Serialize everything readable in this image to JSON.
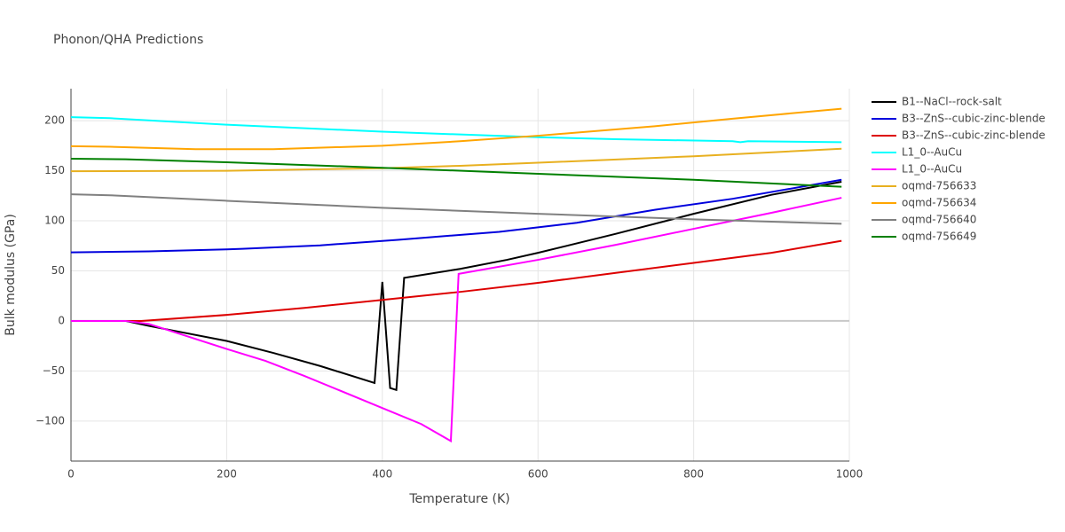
{
  "chart_data": {
    "type": "line",
    "title": "Phonon/QHA Predictions",
    "x_label": "Temperature (K)",
    "y_label": "Bulk modulus (GPa)",
    "xlim": [
      0,
      1000
    ],
    "ylim": [
      -140,
      232
    ],
    "xticks": [
      0,
      200,
      400,
      600,
      800,
      1000
    ],
    "yticks": [
      {
        "value": -100,
        "label": "−100"
      },
      {
        "value": -50,
        "label": "−50"
      },
      0,
      50,
      100,
      150,
      200
    ],
    "grid": true,
    "legend": "right",
    "series": [
      {
        "name": "B1--NaCl--rock-salt",
        "color": "#000000",
        "x": [
          0,
          70,
          100,
          200,
          260,
          320,
          390,
          400,
          410,
          418,
          428,
          500,
          560,
          600,
          700,
          800,
          900,
          990
        ],
        "values": [
          0,
          0,
          -5,
          -20,
          -32,
          -45,
          -62,
          39,
          -67,
          -69,
          43,
          52,
          61,
          68,
          87,
          107,
          126,
          139
        ]
      },
      {
        "name": "B3--ZnS--cubic-zinc-blende",
        "color": "#0000dd",
        "x": [
          0,
          100,
          200,
          220,
          320,
          420,
          550,
          650,
          750,
          850,
          990
        ],
        "values": [
          68.5,
          69.5,
          71.5,
          72,
          75.5,
          81,
          89,
          98,
          111,
          122,
          141
        ]
      },
      {
        "name": "B3--ZnS--cubic-zinc-blende",
        "color": "#dd0000",
        "x": [
          0,
          90,
          200,
          300,
          400,
          500,
          600,
          700,
          800,
          900,
          990
        ],
        "values": [
          0,
          0,
          6,
          13,
          21,
          29,
          38,
          48,
          58,
          68,
          80
        ]
      },
      {
        "name": "L1_0--AuCu",
        "color": "#00ffff",
        "x": [
          0,
          50,
          200,
          400,
          600,
          700,
          850,
          860,
          870,
          990
        ],
        "values": [
          203.5,
          202.5,
          196,
          189,
          183.5,
          181.5,
          179.5,
          178.5,
          179.5,
          178.5
        ]
      },
      {
        "name": "L1_0--AuCu",
        "color": "#ff00ff",
        "x": [
          0,
          70,
          100,
          200,
          250,
          300,
          400,
          450,
          488,
          498,
          600,
          700,
          800,
          900,
          990
        ],
        "values": [
          0,
          0,
          -3,
          -28,
          -40,
          -55,
          -87,
          -103,
          -120,
          47,
          61,
          76,
          92,
          108,
          123
        ]
      },
      {
        "name": "oqmd-756633",
        "color": "#e8b020",
        "x": [
          0,
          200,
          400,
          500,
          600,
          800,
          990
        ],
        "values": [
          149.5,
          150,
          152.5,
          155,
          158,
          164.5,
          172
        ]
      },
      {
        "name": "oqmd-756634",
        "color": "#ffa500",
        "x": [
          0,
          50,
          160,
          260,
          400,
          500,
          600,
          750,
          850,
          990
        ],
        "values": [
          174.5,
          174,
          171.5,
          171.5,
          175,
          179.5,
          185,
          194.5,
          202,
          212
        ]
      },
      {
        "name": "oqmd-756640",
        "color": "#808080",
        "x": [
          0,
          50,
          200,
          400,
          600,
          800,
          990
        ],
        "values": [
          126.5,
          125.5,
          120,
          113,
          107,
          101.5,
          97
        ]
      },
      {
        "name": "oqmd-756649",
        "color": "#008000",
        "x": [
          0,
          70,
          200,
          400,
          600,
          800,
          990
        ],
        "values": [
          162,
          161.5,
          158.5,
          153,
          147,
          141,
          134
        ]
      }
    ]
  }
}
